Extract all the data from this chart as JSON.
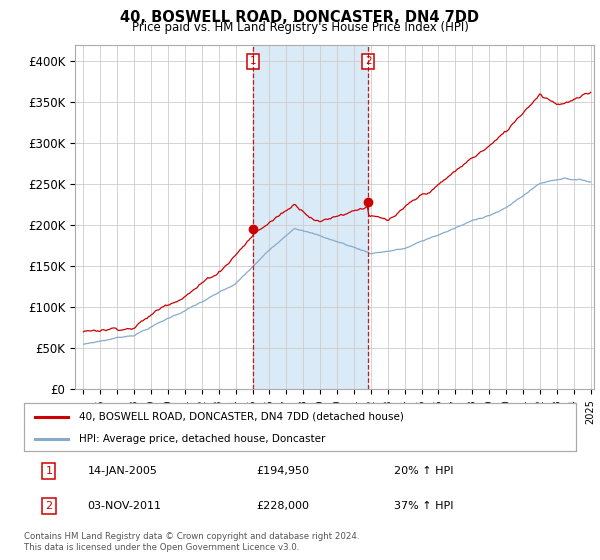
{
  "title": "40, BOSWELL ROAD, DONCASTER, DN4 7DD",
  "subtitle": "Price paid vs. HM Land Registry's House Price Index (HPI)",
  "ylim": [
    0,
    420000
  ],
  "yticks": [
    0,
    50000,
    100000,
    150000,
    200000,
    250000,
    300000,
    350000,
    400000
  ],
  "bg_color": "#ddeeff",
  "shade_color": "#daeaf7",
  "grid_color": "#cccccc",
  "sale1_year": 2005.04,
  "sale1_price": 194950,
  "sale1_hpi": "20%",
  "sale1_date": "14-JAN-2005",
  "sale2_year": 2011.84,
  "sale2_price": 228000,
  "sale2_hpi": "37%",
  "sale2_date": "03-NOV-2011",
  "red_color": "#cc0000",
  "blue_color": "#88aacc",
  "legend1": "40, BOSWELL ROAD, DONCASTER, DN4 7DD (detached house)",
  "legend2": "HPI: Average price, detached house, Doncaster",
  "footer": "Contains HM Land Registry data © Crown copyright and database right 2024.\nThis data is licensed under the Open Government Licence v3.0.",
  "xstart": 1995,
  "xend": 2025
}
